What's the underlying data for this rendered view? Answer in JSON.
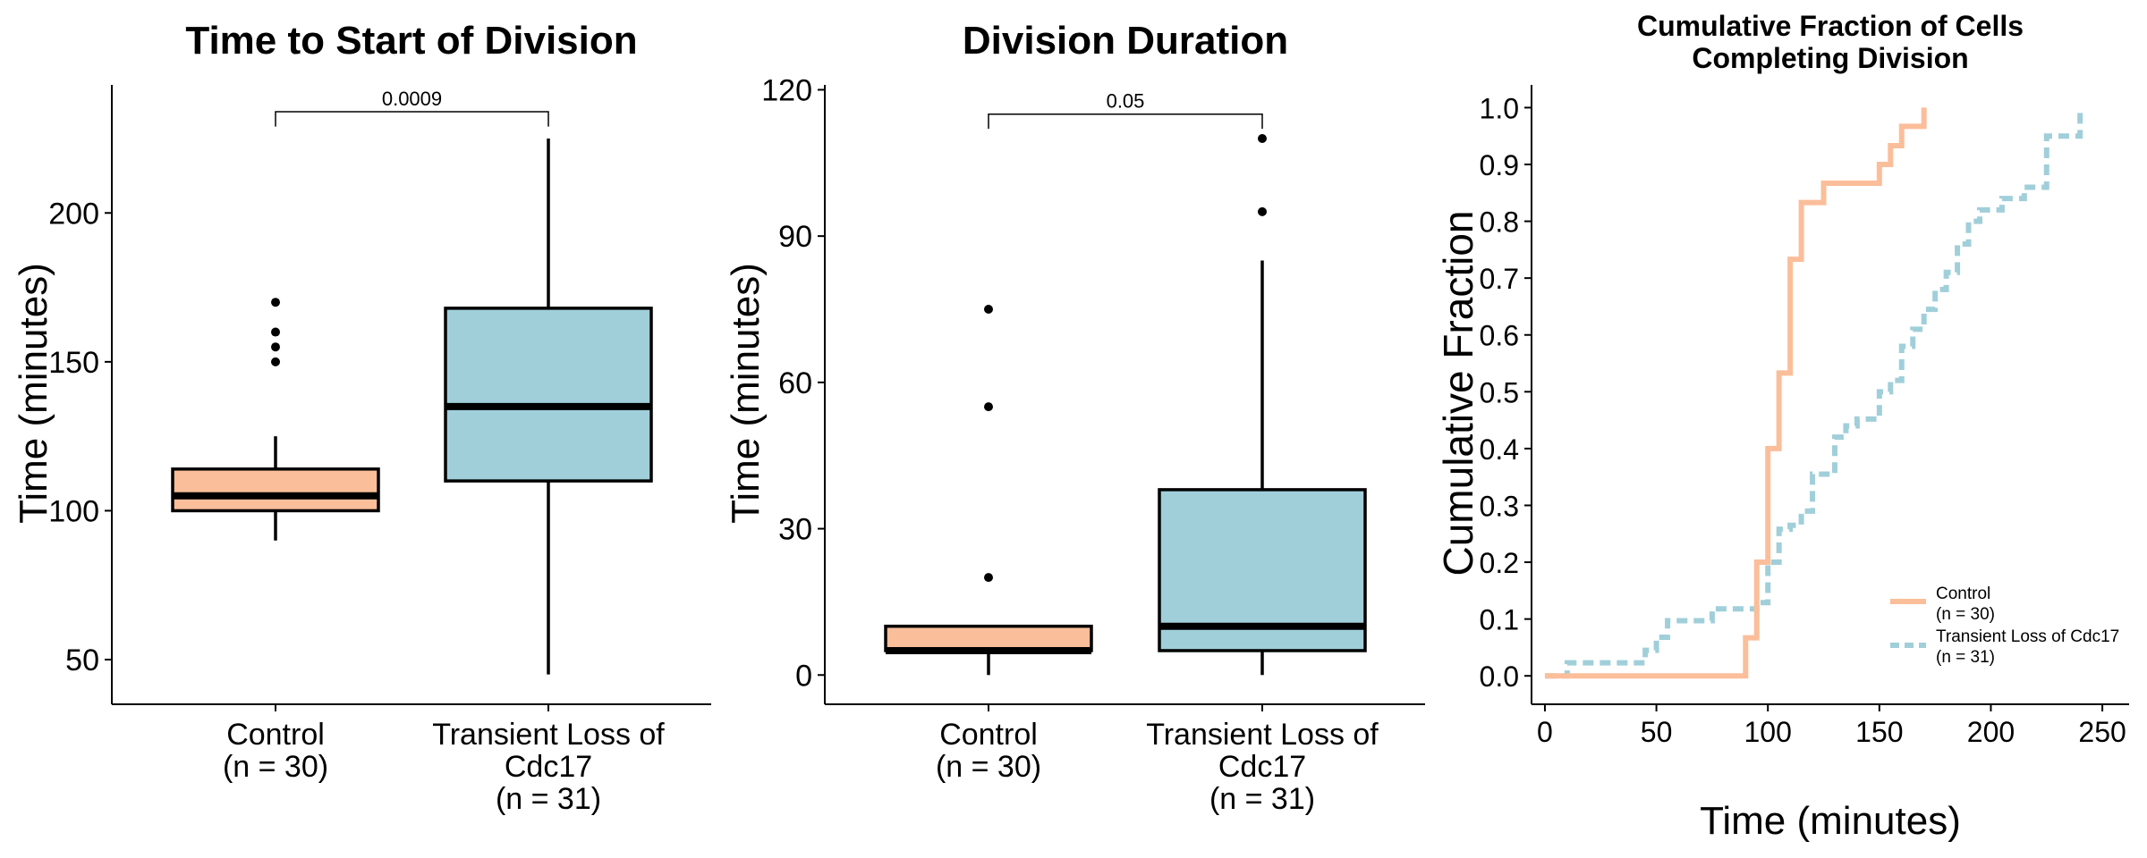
{
  "colors": {
    "control": "#fbbe9a",
    "transient": "#a0cfda",
    "outline": "#000000"
  },
  "chart_data": [
    {
      "type": "box",
      "title": "Time to Start of Division",
      "ylabel": "Time (minutes)",
      "ylim": [
        35,
        243
      ],
      "yticks": [
        "50",
        "100",
        "150",
        "200"
      ],
      "yticks_values": [
        50,
        100,
        150,
        200
      ],
      "categories": [
        {
          "lines": [
            "Control",
            "(n = 30)"
          ]
        },
        {
          "lines": [
            "Transient Loss of",
            "Cdc17",
            "(n = 31)"
          ]
        }
      ],
      "boxes": [
        {
          "whisker_low": 90,
          "q1": 100,
          "median": 105,
          "q3": 114,
          "whisker_high": 125,
          "outliers": [
            150,
            155,
            160,
            170
          ]
        },
        {
          "whisker_low": 45,
          "q1": 110,
          "median": 135,
          "q3": 168,
          "whisker_high": 225,
          "outliers": []
        }
      ],
      "significance": {
        "label": "0.0009",
        "y": 234,
        "tick_bottom": 229
      }
    },
    {
      "type": "box",
      "title": "Division Duration",
      "ylabel": "Time (minutes)",
      "ylim": [
        -6,
        121
      ],
      "yticks": [
        "0",
        "30",
        "60",
        "90",
        "120"
      ],
      "yticks_values": [
        0,
        30,
        60,
        90,
        120
      ],
      "categories": [
        {
          "lines": [
            "Control",
            "(n = 30)"
          ]
        },
        {
          "lines": [
            "Transient Loss of",
            "Cdc17",
            "(n = 31)"
          ]
        }
      ],
      "boxes": [
        {
          "whisker_low": 0,
          "q1": 5,
          "median": 5,
          "q3": 10,
          "whisker_high": 10,
          "outliers": [
            20,
            55,
            75
          ]
        },
        {
          "whisker_low": 0,
          "q1": 5,
          "median": 10,
          "q3": 38,
          "whisker_high": 85,
          "outliers": [
            95,
            110
          ]
        }
      ],
      "significance": {
        "label": "0.05",
        "y": 115,
        "tick_bottom": 112
      }
    },
    {
      "type": "step",
      "title": "Cumulative Fraction of Cells",
      "title_line2": "Completing Division",
      "xlabel": "Time (minutes)",
      "ylabel": "Cumulative Fraction",
      "xlim": [
        -6,
        262
      ],
      "ylim": [
        -0.05,
        1.04
      ],
      "xticks": [
        "0",
        "50",
        "100",
        "150",
        "200",
        "250"
      ],
      "xticks_values": [
        0,
        50,
        100,
        150,
        200,
        250
      ],
      "yticks": [
        "0.0",
        "0.1",
        "0.2",
        "0.3",
        "0.4",
        "0.5",
        "0.6",
        "0.7",
        "0.8",
        "0.9",
        "1.0"
      ],
      "yticks_values": [
        0,
        0.1,
        0.2,
        0.3,
        0.4,
        0.5,
        0.6,
        0.7,
        0.8,
        0.9,
        1.0
      ],
      "legend_position": "bottom-right",
      "series": [
        {
          "name": "Control",
          "name_line2": "(n = 30)",
          "style": "solid",
          "x": [
            0,
            90,
            95,
            100,
            105,
            110,
            115,
            125,
            150,
            155,
            160,
            170
          ],
          "y": [
            0,
            0.067,
            0.2,
            0.4,
            0.533,
            0.733,
            0.833,
            0.867,
            0.9,
            0.933,
            0.967,
            1.0
          ]
        },
        {
          "name": "Transient Loss of Cdc17",
          "name_line2": "(n = 31)",
          "style": "dashed",
          "x": [
            0,
            10,
            45,
            50,
            55,
            75,
            95,
            100,
            105,
            110,
            115,
            120,
            130,
            135,
            140,
            150,
            155,
            160,
            165,
            170,
            175,
            180,
            185,
            190,
            195,
            205,
            215,
            225,
            240
          ],
          "y": [
            0,
            0.023,
            0.045,
            0.068,
            0.097,
            0.118,
            0.129,
            0.2,
            0.258,
            0.265,
            0.29,
            0.355,
            0.42,
            0.44,
            0.452,
            0.5,
            0.52,
            0.58,
            0.61,
            0.645,
            0.68,
            0.71,
            0.76,
            0.8,
            0.82,
            0.84,
            0.86,
            0.95,
            1.0
          ]
        }
      ]
    }
  ]
}
